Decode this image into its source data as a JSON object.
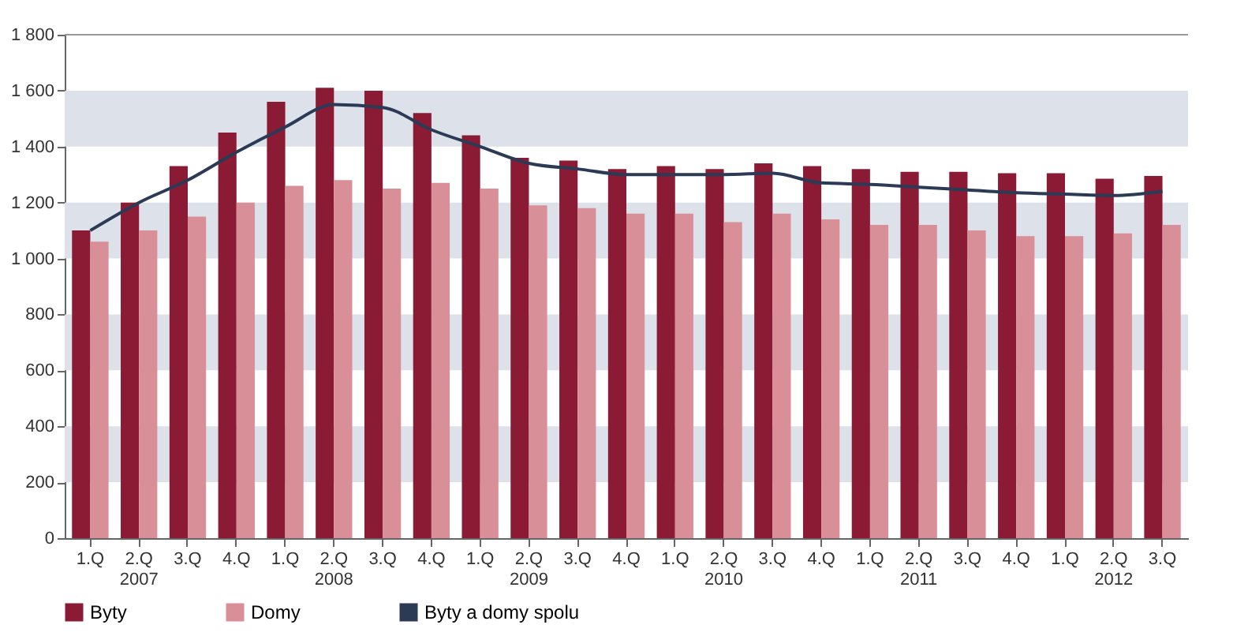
{
  "chart_data": {
    "type": "bar",
    "categories": [
      "1.Q",
      "2.Q\n2007",
      "3.Q",
      "4.Q",
      "1.Q",
      "2.Q\n2008",
      "3.Q",
      "4.Q",
      "1.Q",
      "2.Q\n2009",
      "3.Q",
      "4.Q",
      "1.Q",
      "2.Q\n2010",
      "3.Q",
      "4.Q",
      "1.Q",
      "2.Q\n2011",
      "3.Q",
      "4.Q",
      "1.Q",
      "2.Q\n2012",
      "3.Q"
    ],
    "series": [
      {
        "name": "Byty",
        "color": "#8b1a35",
        "values": [
          1100,
          1200,
          1330,
          1450,
          1560,
          1610,
          1600,
          1520,
          1440,
          1360,
          1350,
          1320,
          1330,
          1320,
          1340,
          1330,
          1320,
          1310,
          1310,
          1305,
          1305,
          1285,
          1295
        ]
      },
      {
        "name": "Domy",
        "color": "#d98f97",
        "values": [
          1060,
          1100,
          1150,
          1200,
          1260,
          1280,
          1250,
          1270,
          1250,
          1190,
          1180,
          1160,
          1160,
          1130,
          1160,
          1140,
          1120,
          1120,
          1100,
          1080,
          1080,
          1090,
          1120
        ]
      },
      {
        "name": "Byty a domy spolu",
        "type": "line",
        "color": "#2b3a55",
        "values": [
          1100,
          1200,
          1280,
          1380,
          1470,
          1550,
          1540,
          1460,
          1400,
          1340,
          1320,
          1300,
          1300,
          1300,
          1305,
          1270,
          1265,
          1255,
          1245,
          1235,
          1230,
          1225,
          1240
        ]
      }
    ],
    "ylim": [
      0,
      1800
    ],
    "yticks": [
      0,
      200,
      400,
      600,
      800,
      {
        "value": 1000,
        "label": "1 000"
      },
      {
        "value": 1200,
        "label": "1 200"
      },
      {
        "value": 1400,
        "label": "1 400"
      },
      {
        "value": 1600,
        "label": "1 600"
      },
      {
        "value": 1800,
        "label": "1 800"
      }
    ],
    "bands": [
      {
        "axis": "y",
        "from": 200,
        "to": 400,
        "color": "#dde2ea"
      },
      {
        "axis": "y",
        "from": 600,
        "to": 800,
        "color": "#dde2ea"
      },
      {
        "axis": "y",
        "from": 1000,
        "to": 1200,
        "color": "#dde2ea"
      },
      {
        "axis": "y",
        "from": 1400,
        "to": 1600,
        "color": "#dde2ea"
      }
    ],
    "grid": false,
    "legend": "bottom"
  }
}
